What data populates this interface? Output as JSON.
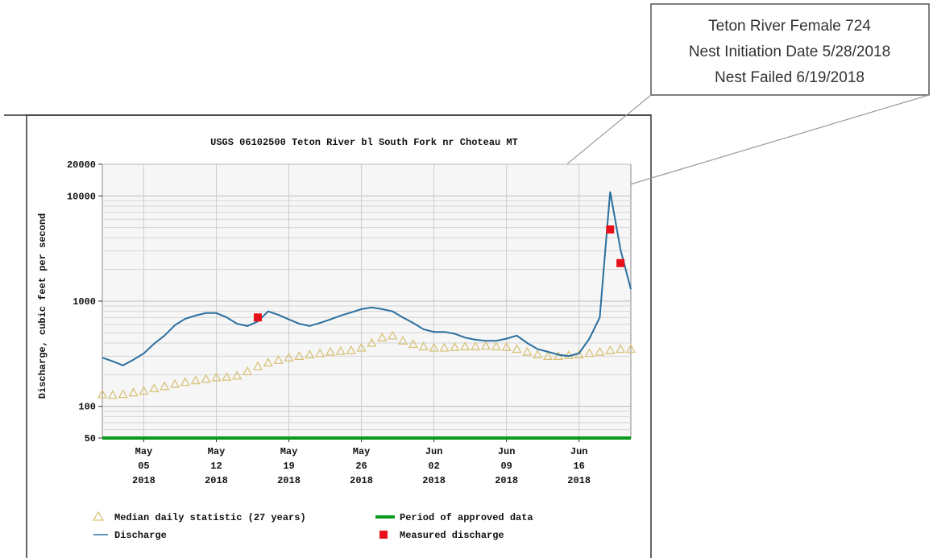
{
  "annotation": {
    "lines": [
      "Teton River Female 724",
      "Nest Initiation Date 5/28/2018",
      "Nest Failed 6/19/2018"
    ]
  },
  "chart_data": {
    "type": "line",
    "title": "USGS 06102500 Teton River bl South Fork nr Choteau MT",
    "y_label": "Discharge, cubic feet per second",
    "yscale": "log",
    "grid": true,
    "ylim": [
      50,
      20000
    ],
    "yticks": [
      50,
      100,
      1000,
      10000,
      20000
    ],
    "y_minor_grid": [
      60,
      70,
      80,
      90,
      200,
      300,
      400,
      500,
      600,
      700,
      800,
      900,
      2000,
      3000,
      4000,
      5000,
      6000,
      7000,
      8000,
      9000
    ],
    "xlim": [
      "2018-05-01",
      "2018-06-21"
    ],
    "xticks": [
      {
        "value": "2018-05-05",
        "label": "May 05 2018"
      },
      {
        "value": "2018-05-12",
        "label": "May 12 2018"
      },
      {
        "value": "2018-05-19",
        "label": "May 19 2018"
      },
      {
        "value": "2018-05-26",
        "label": "May 26 2018"
      },
      {
        "value": "2018-06-02",
        "label": "Jun 02 2018"
      },
      {
        "value": "2018-06-09",
        "label": "Jun 09 2018"
      },
      {
        "value": "2018-06-16",
        "label": "Jun 16 2018"
      }
    ],
    "x": [
      "2018-05-01",
      "2018-05-02",
      "2018-05-03",
      "2018-05-04",
      "2018-05-05",
      "2018-05-06",
      "2018-05-07",
      "2018-05-08",
      "2018-05-09",
      "2018-05-10",
      "2018-05-11",
      "2018-05-12",
      "2018-05-13",
      "2018-05-14",
      "2018-05-15",
      "2018-05-16",
      "2018-05-17",
      "2018-05-18",
      "2018-05-19",
      "2018-05-20",
      "2018-05-21",
      "2018-05-22",
      "2018-05-23",
      "2018-05-24",
      "2018-05-25",
      "2018-05-26",
      "2018-05-27",
      "2018-05-28",
      "2018-05-29",
      "2018-05-30",
      "2018-05-31",
      "2018-06-01",
      "2018-06-02",
      "2018-06-03",
      "2018-06-04",
      "2018-06-05",
      "2018-06-06",
      "2018-06-07",
      "2018-06-08",
      "2018-06-09",
      "2018-06-10",
      "2018-06-11",
      "2018-06-12",
      "2018-06-13",
      "2018-06-14",
      "2018-06-15",
      "2018-06-16",
      "2018-06-17",
      "2018-06-18",
      "2018-06-19",
      "2018-06-20",
      "2018-06-21"
    ],
    "series": [
      {
        "name": "Discharge",
        "color": "#2a6f9e",
        "style": "line",
        "values": [
          290,
          268,
          245,
          277,
          319,
          394,
          470,
          590,
          680,
          730,
          770,
          770,
          700,
          610,
          580,
          640,
          800,
          740,
          670,
          610,
          580,
          620,
          670,
          730,
          780,
          840,
          870,
          840,
          800,
          700,
          620,
          540,
          510,
          510,
          490,
          450,
          430,
          420,
          420,
          440,
          470,
          400,
          350,
          330,
          310,
          300,
          320,
          440,
          700,
          11000,
          3100,
          1300
        ]
      },
      {
        "name": "Median daily statistic (27 years)",
        "color": "#d8c27a",
        "style": "triangle",
        "values": [
          130,
          128,
          130,
          135,
          140,
          148,
          155,
          163,
          170,
          176,
          182,
          188,
          190,
          195,
          215,
          240,
          260,
          275,
          290,
          300,
          310,
          320,
          330,
          335,
          340,
          360,
          400,
          450,
          470,
          420,
          390,
          370,
          360,
          360,
          365,
          370,
          370,
          375,
          370,
          365,
          350,
          330,
          310,
          300,
          300,
          305,
          310,
          320,
          330,
          340,
          350,
          350
        ]
      },
      {
        "name": "Period of approved data",
        "color": "#0a9a1e",
        "style": "band"
      },
      {
        "name": "Measured discharge",
        "color": "#e8101a",
        "style": "square",
        "x": [
          "2018-05-16",
          "2018-06-19",
          "2018-06-20"
        ],
        "values": [
          700,
          4800,
          2300
        ]
      }
    ]
  }
}
